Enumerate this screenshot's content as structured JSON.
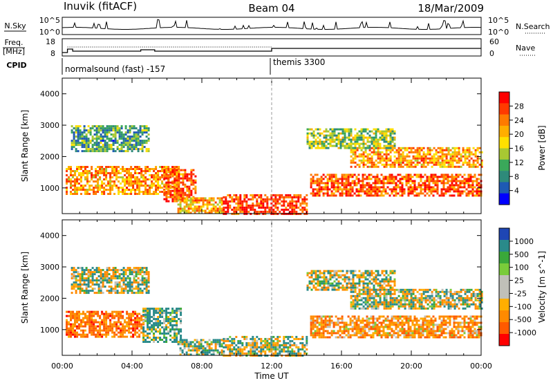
{
  "header": {
    "station": "Inuvik (fitACF)",
    "beam": "Beam 04",
    "date": "18/Mar/2009"
  },
  "noise_panel": {
    "left_label": "N.Sky",
    "left_ticks": [
      "10^5",
      "10^0"
    ],
    "right_ticks": [
      "10^5",
      "10^0"
    ],
    "right_label": "N.Search",
    "right_label_style": "dotted"
  },
  "freq_panel": {
    "left_label_1": "Freq.",
    "left_label_2": "[MHz]",
    "left_ticks": [
      "18",
      "8"
    ],
    "right_ticks": [
      "60",
      "0"
    ],
    "right_label": "Nave",
    "right_label_style": "dotted"
  },
  "cpid_panel": {
    "label": "CPID",
    "programs": [
      {
        "name": "normalsound (fast) -157",
        "start_hour": 0
      },
      {
        "name": "themis 3300",
        "start_hour": 12
      }
    ]
  },
  "x_axis": {
    "label": "Time UT",
    "ticks": [
      "00:00",
      "04:00",
      "08:00",
      "12:00",
      "16:00",
      "20:00",
      "00:00"
    ]
  },
  "power_colorbar": {
    "label": "Power [dB]",
    "ticks": [
      "28",
      "24",
      "20",
      "16",
      "12",
      "8",
      "4"
    ],
    "colors": [
      "#ff0000",
      "#ff3a00",
      "#ff7a00",
      "#ffae00",
      "#ffe000",
      "#a8c832",
      "#3aa85a",
      "#2e8a7a",
      "#1e5ab4",
      "#0000ff"
    ]
  },
  "velocity_colorbar": {
    "label": "Velocity [m s^-1]",
    "ticks": [
      "1000",
      "500",
      "100",
      "25",
      "-25",
      "-100",
      "-500",
      "-1000"
    ],
    "colors": [
      "#1e46b4",
      "#2a8a8a",
      "#3aa83a",
      "#7acc3a",
      "#c0c0b8",
      "#c0c0b8",
      "#ffae00",
      "#ff8a00",
      "#ff5a00",
      "#ff0000"
    ]
  },
  "chart_data": [
    {
      "type": "heatmap",
      "quantity": "Power",
      "xlabel": "Time UT",
      "ylabel": "Slant Range [km]",
      "xlim_hours": [
        0,
        24
      ],
      "ylim_km": [
        180,
        4500
      ],
      "yticks": [
        1000,
        2000,
        3000,
        4000
      ],
      "clim_db": [
        0,
        32
      ],
      "echo_regions": [
        {
          "t_start": 0.2,
          "t_end": 6.7,
          "r_min": 800,
          "r_max": 1700,
          "value": 22
        },
        {
          "t_start": 5.8,
          "t_end": 7.6,
          "r_min": 600,
          "r_max": 1600,
          "value": 26
        },
        {
          "t_start": 6.6,
          "t_end": 9.2,
          "r_min": 180,
          "r_max": 700,
          "value": 20
        },
        {
          "t_start": 9.2,
          "t_end": 14.0,
          "r_min": 180,
          "r_max": 800,
          "value": 28
        },
        {
          "t_start": 14.2,
          "t_end": 24.0,
          "r_min": 750,
          "r_max": 1450,
          "value": 26
        },
        {
          "t_start": 16.5,
          "t_end": 24.0,
          "r_min": 1700,
          "r_max": 2300,
          "value": 22
        },
        {
          "t_start": 14.0,
          "t_end": 19.0,
          "r_min": 2300,
          "r_max": 2900,
          "value": 14
        },
        {
          "t_start": 0.5,
          "t_end": 5.0,
          "r_min": 2200,
          "r_max": 3000,
          "value": 10
        }
      ]
    },
    {
      "type": "heatmap",
      "quantity": "Velocity",
      "xlabel": "Time UT",
      "ylabel": "Slant Range [km]",
      "xlim_hours": [
        0,
        24
      ],
      "ylim_km": [
        180,
        4500
      ],
      "yticks": [
        1000,
        2000,
        3000,
        4000
      ],
      "clim_ms": [
        -1000,
        1000
      ],
      "echo_regions": [
        {
          "t_start": 0.2,
          "t_end": 4.6,
          "r_min": 750,
          "r_max": 1600,
          "value": -300
        },
        {
          "t_start": 4.6,
          "t_end": 6.8,
          "r_min": 600,
          "r_max": 1700,
          "value": 150
        },
        {
          "t_start": 6.6,
          "t_end": 9.2,
          "r_min": 180,
          "r_max": 700,
          "value": 80
        },
        {
          "t_start": 9.2,
          "t_end": 14.0,
          "r_min": 180,
          "r_max": 800,
          "value": 10
        },
        {
          "t_start": 14.2,
          "t_end": 24.0,
          "r_min": 750,
          "r_max": 1450,
          "value": -200
        },
        {
          "t_start": 16.5,
          "t_end": 24.0,
          "r_min": 1700,
          "r_max": 2300,
          "value": 0
        },
        {
          "t_start": 14.0,
          "t_end": 19.0,
          "r_min": 2300,
          "r_max": 2900,
          "value": 5
        },
        {
          "t_start": 0.5,
          "t_end": 5.0,
          "r_min": 2200,
          "r_max": 3000,
          "value": 0
        }
      ]
    }
  ]
}
